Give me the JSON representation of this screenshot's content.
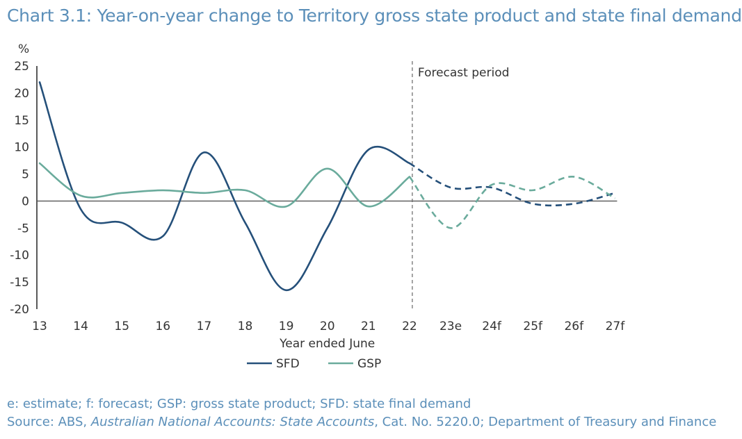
{
  "chart_data": {
    "type": "line",
    "title": "Chart 3.1: Year-on-year change to Territory gross state product and state final demand",
    "ylabel": "%",
    "xlabel": "Year ended June",
    "categories": [
      "13",
      "14",
      "15",
      "16",
      "17",
      "18",
      "19",
      "20",
      "21",
      "22",
      "23e",
      "24f",
      "25f",
      "26f",
      "27f"
    ],
    "ylim": [
      -20,
      25
    ],
    "yticks": [
      25,
      20,
      15,
      10,
      5,
      0,
      -5,
      -10,
      -15,
      -20
    ],
    "forecast_label": "Forecast period",
    "forecast_start_index": 9,
    "series": [
      {
        "name": "SFD",
        "color": "#25507a",
        "values": [
          22.0,
          -1.5,
          -4.0,
          -6.5,
          9.0,
          -4.0,
          -16.5,
          -5.0,
          9.5,
          7.0,
          2.5,
          2.5,
          -0.5,
          -0.5,
          1.5
        ]
      },
      {
        "name": "GSP",
        "color": "#6aab9c",
        "values": [
          7.0,
          1.0,
          1.5,
          2.0,
          1.5,
          2.0,
          -1.0,
          6.0,
          -1.0,
          4.5,
          -5.0,
          3.0,
          2.0,
          4.5,
          0.5
        ]
      }
    ],
    "legend_position": "bottom-center",
    "grid": false
  },
  "notes": {
    "line1": "e: estimate; f: forecast; GSP: gross state product; SFD: state final demand",
    "source_prefix": "Source: ABS, ",
    "source_title": "Australian National Accounts: State Accounts",
    "source_suffix": ", Cat. No. 5220.0; Department of Treasury and Finance"
  }
}
